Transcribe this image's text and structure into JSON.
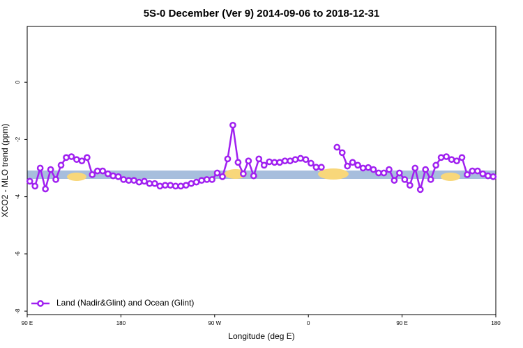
{
  "chart_data": {
    "type": "line",
    "title": "5S-0 December (Ver 9)   2014-09-06 to 2018-12-31",
    "xlabel": "Longitude (deg E)",
    "ylabel": "XCO2 - MLO trend (ppm)",
    "x": [
      92.5,
      97.5,
      102.5,
      107.5,
      112.5,
      117.5,
      122.5,
      127.5,
      132.5,
      137.5,
      142.5,
      147.5,
      152.5,
      157.5,
      162.5,
      167.5,
      172.5,
      177.5,
      182.5,
      187.5,
      192.5,
      197.5,
      202.5,
      207.5,
      212.5,
      217.5,
      222.5,
      227.5,
      232.5,
      237.5,
      242.5,
      247.5,
      252.5,
      257.5,
      262.5,
      267.5,
      272.5,
      277.5,
      282.5,
      287.5,
      292.5,
      297.5,
      302.5,
      307.5,
      312.5,
      317.5,
      322.5,
      327.5,
      332.5,
      337.5,
      342.5,
      347.5,
      352.5,
      357.5,
      362.5,
      367.5,
      372.5,
      377.5,
      382.5,
      387.5,
      392.5,
      397.5,
      402.5,
      407.5,
      412.5,
      417.5,
      422.5,
      427.5,
      432.5,
      437.5,
      442.5,
      447.5,
      452.5,
      457.5,
      462.5,
      467.5,
      472.5,
      477.5,
      482.5,
      487.5,
      492.5,
      497.5,
      502.5,
      507.5,
      512.5,
      517.5,
      522.5,
      527.5,
      532.5,
      537.5
    ],
    "series": [
      {
        "name": "Land (Nadir&Glint) and Ocean (Glint)",
        "color": "#a020f0",
        "values": [
          -3.46,
          -3.63,
          -3.0,
          -3.73,
          -3.05,
          -3.4,
          -2.9,
          -2.63,
          -2.6,
          -2.7,
          -2.75,
          -2.63,
          -3.23,
          -3.1,
          -3.1,
          -3.2,
          -3.27,
          -3.3,
          -3.4,
          -3.43,
          -3.43,
          -3.49,
          -3.46,
          -3.54,
          -3.54,
          -3.63,
          -3.6,
          -3.6,
          -3.63,
          -3.63,
          -3.6,
          -3.54,
          -3.49,
          -3.43,
          -3.4,
          -3.4,
          -3.17,
          -3.3,
          -2.68,
          -1.5,
          -2.8,
          -3.2,
          -2.75,
          -3.27,
          -2.68,
          -2.9,
          -2.78,
          -2.8,
          -2.8,
          -2.75,
          -2.75,
          -2.7,
          -2.66,
          -2.7,
          -2.83,
          -2.97,
          -2.97,
          null,
          null,
          -2.27,
          -2.46,
          -2.93,
          -2.8,
          -2.9,
          -3.0,
          -2.98,
          -3.05,
          -3.17,
          -3.17,
          -3.05,
          -3.43,
          -3.17,
          -3.4,
          -3.6,
          -3.0,
          -3.75,
          -3.05,
          -3.4,
          -2.9,
          -2.63,
          -2.6,
          -2.7,
          -2.75,
          -2.63,
          -3.23,
          -3.1,
          -3.1,
          -3.2,
          -3.27,
          -3.3
        ]
      }
    ],
    "xlim": [
      90,
      540
    ],
    "xticks": [
      {
        "value": 90,
        "label": "90 E"
      },
      180,
      {
        "value": 270,
        "label": "90 W"
      },
      {
        "value": 360,
        "label": "0"
      },
      {
        "value": 450,
        "label": "90 E"
      },
      {
        "value": 540,
        "label": "180"
      }
    ],
    "ylim": [
      -8.12,
      1.95
    ],
    "yticks": [
      0,
      -2,
      -4,
      -6,
      -8
    ],
    "legend": "bottom-left"
  }
}
